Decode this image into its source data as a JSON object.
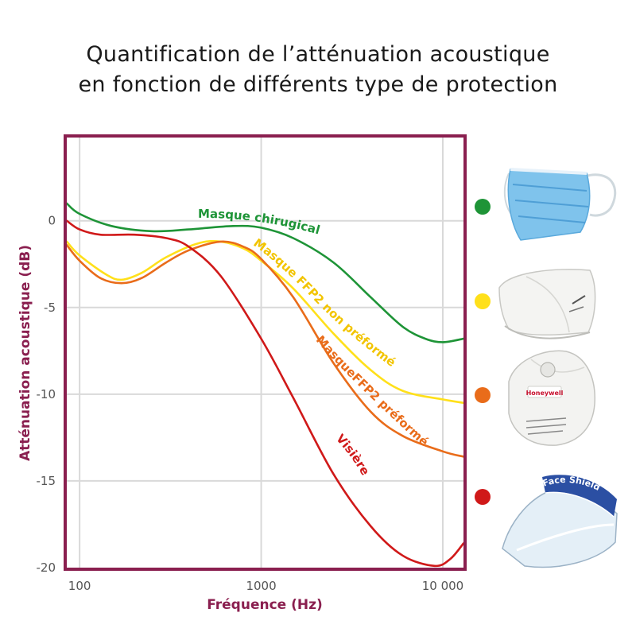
{
  "title_lines": [
    "Quantification de l’atténuation acoustique",
    "en fonction de différents type de protection"
  ],
  "chart_data": {
    "type": "line",
    "title": "Quantification de l’atténuation acoustique en fonction de différents type de protection",
    "xlabel": "Fréquence (Hz)",
    "ylabel": "Atténuation acoustique (dB)",
    "xscale": "log",
    "xlim": [
      85,
      13000
    ],
    "ylim": [
      -20,
      4.8
    ],
    "x_ticks": [
      {
        "value": 100,
        "label": "100"
      },
      {
        "value": 1000,
        "label": "1000"
      },
      {
        "value": 10000,
        "label": "10 000"
      }
    ],
    "y_ticks": [
      {
        "value": 0,
        "label": "0"
      },
      {
        "value": -5,
        "label": "-5"
      },
      {
        "value": -10,
        "label": "-10"
      },
      {
        "value": -15,
        "label": "-15"
      },
      {
        "value": -20,
        "label": "-20"
      }
    ],
    "grid": true,
    "series": [
      {
        "name": "Masque chirugical",
        "color": "#1e9437",
        "points": [
          [
            85,
            1.0
          ],
          [
            100,
            0.4
          ],
          [
            150,
            -0.3
          ],
          [
            250,
            -0.6
          ],
          [
            400,
            -0.5
          ],
          [
            700,
            -0.3
          ],
          [
            1000,
            -0.4
          ],
          [
            1500,
            -1.0
          ],
          [
            2500,
            -2.4
          ],
          [
            4000,
            -4.4
          ],
          [
            6000,
            -6.1
          ],
          [
            8000,
            -6.8
          ],
          [
            10000,
            -7.0
          ],
          [
            13000,
            -6.8
          ]
        ]
      },
      {
        "name": "Masque FFP2 non préformé",
        "color": "#ffe01a",
        "points": [
          [
            85,
            -1.2
          ],
          [
            100,
            -2.0
          ],
          [
            140,
            -3.1
          ],
          [
            170,
            -3.4
          ],
          [
            220,
            -3.0
          ],
          [
            300,
            -2.1
          ],
          [
            450,
            -1.3
          ],
          [
            600,
            -1.2
          ],
          [
            800,
            -1.6
          ],
          [
            1000,
            -2.3
          ],
          [
            1500,
            -3.9
          ],
          [
            2500,
            -6.5
          ],
          [
            4000,
            -8.6
          ],
          [
            6000,
            -9.8
          ],
          [
            10000,
            -10.3
          ],
          [
            13000,
            -10.5
          ]
        ]
      },
      {
        "name": "MasqueFFP2 préformé",
        "color": "#e96c1a",
        "points": [
          [
            85,
            -1.4
          ],
          [
            100,
            -2.3
          ],
          [
            130,
            -3.3
          ],
          [
            170,
            -3.6
          ],
          [
            220,
            -3.3
          ],
          [
            300,
            -2.4
          ],
          [
            400,
            -1.7
          ],
          [
            600,
            -1.2
          ],
          [
            800,
            -1.5
          ],
          [
            1000,
            -2.2
          ],
          [
            1500,
            -4.4
          ],
          [
            2500,
            -8.2
          ],
          [
            4000,
            -11.0
          ],
          [
            6000,
            -12.4
          ],
          [
            10000,
            -13.3
          ],
          [
            13000,
            -13.6
          ]
        ]
      },
      {
        "name": "Visière",
        "color": "#d01919",
        "points": [
          [
            85,
            0.0
          ],
          [
            100,
            -0.5
          ],
          [
            130,
            -0.8
          ],
          [
            200,
            -0.8
          ],
          [
            300,
            -1.0
          ],
          [
            400,
            -1.5
          ],
          [
            600,
            -3.2
          ],
          [
            1000,
            -6.8
          ],
          [
            1500,
            -10.2
          ],
          [
            2500,
            -14.6
          ],
          [
            4000,
            -17.6
          ],
          [
            6000,
            -19.3
          ],
          [
            9000,
            -19.9
          ],
          [
            11000,
            -19.5
          ],
          [
            13000,
            -18.6
          ]
        ]
      }
    ]
  },
  "labels": {
    "chirurgical": "Masque chirugical",
    "ffp2_non": "Masque FFP2 non préformé",
    "ffp2_pre": "MasqueFFP2 préformé",
    "visiere": "Visière"
  },
  "legend_dots": [
    {
      "color": "#1e9437",
      "icon": "surgical-mask-icon"
    },
    {
      "color": "#ffe01a",
      "icon": "ffp2-flat-mask-icon"
    },
    {
      "color": "#e96c1a",
      "icon": "ffp2-molded-mask-icon"
    },
    {
      "color": "#d01919",
      "icon": "face-shield-icon"
    }
  ],
  "photo_text": {
    "honeywell": "Honeywell",
    "face_shield": "Face Shield"
  }
}
